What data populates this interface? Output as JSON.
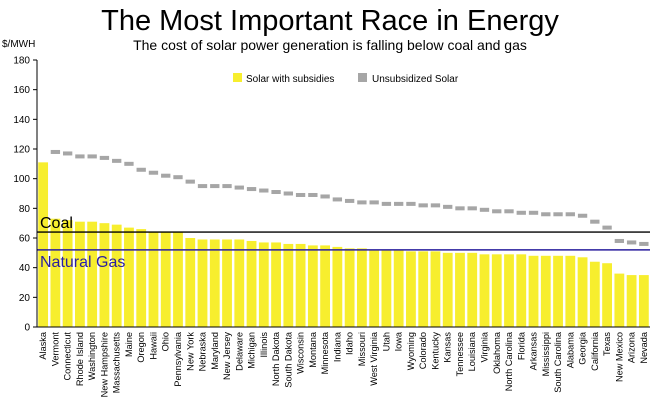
{
  "chart_data": {
    "type": "bar",
    "title": "The Most Important Race in Energy",
    "subtitle": "The cost of solar power generation is falling below coal and gas",
    "ylabel": "$/MWH",
    "ylim": [
      0,
      180
    ],
    "yticks": [
      0,
      20,
      40,
      60,
      80,
      100,
      120,
      140,
      160,
      180
    ],
    "grid": false,
    "legend_position": "top",
    "categories": [
      "Alaska",
      "Vermont",
      "Connecticut",
      "Rhode Island",
      "Washington",
      "New Hampshire",
      "Massachusetts",
      "Maine",
      "Oregon",
      "Hawaii",
      "Ohio",
      "Pennsylvania",
      "New York",
      "Nebraska",
      "Maryland",
      "New Jersey",
      "Delaware",
      "Michigan",
      "Illinois",
      "North Dakota",
      "South Dakota",
      "Wisconsin",
      "Montana",
      "Minnesota",
      "Indiana",
      "Idaho",
      "Missouri",
      "West Virginia",
      "Utah",
      "Iowa",
      "Wyoming",
      "Colorado",
      "Kentucky",
      "Kansas",
      "Tennessee",
      "Louisiana",
      "Virginia",
      "Oklahoma",
      "North Carolina",
      "Florida",
      "Arkansas",
      "Mississippi",
      "South Carolina",
      "Alabama",
      "Georgia",
      "California",
      "Texas",
      "New Mexico",
      "Arizona",
      "Nevada"
    ],
    "series": [
      {
        "name": "Solar with subsidies",
        "type": "bar",
        "color": "#f7ee2e",
        "values": [
          111,
          73,
          72,
          71,
          71,
          70,
          69,
          67,
          66,
          64,
          64,
          64,
          60,
          59,
          59,
          59,
          59,
          58,
          57,
          57,
          56,
          56,
          55,
          55,
          54,
          53,
          53,
          52,
          52,
          52,
          51,
          51,
          51,
          50,
          50,
          50,
          49,
          49,
          49,
          49,
          48,
          48,
          48,
          48,
          47,
          44,
          43,
          36,
          35,
          35
        ]
      },
      {
        "name": "Unsubsidized Solar",
        "type": "dash",
        "color": "#a6a6a6",
        "values": [
          null,
          118,
          117,
          115,
          115,
          114,
          112,
          110,
          106,
          104,
          102,
          101,
          98,
          95,
          95,
          95,
          94,
          93,
          92,
          91,
          90,
          89,
          89,
          88,
          86,
          85,
          84,
          84,
          83,
          83,
          83,
          82,
          82,
          81,
          80,
          80,
          79,
          78,
          78,
          77,
          77,
          76,
          76,
          76,
          75,
          71,
          67,
          58,
          57,
          56
        ]
      }
    ],
    "reference_lines": [
      {
        "name": "Coal",
        "value": 64,
        "color": "#000000"
      },
      {
        "name": "Natural Gas",
        "value": 52,
        "color": "#2a1f9e"
      }
    ]
  }
}
